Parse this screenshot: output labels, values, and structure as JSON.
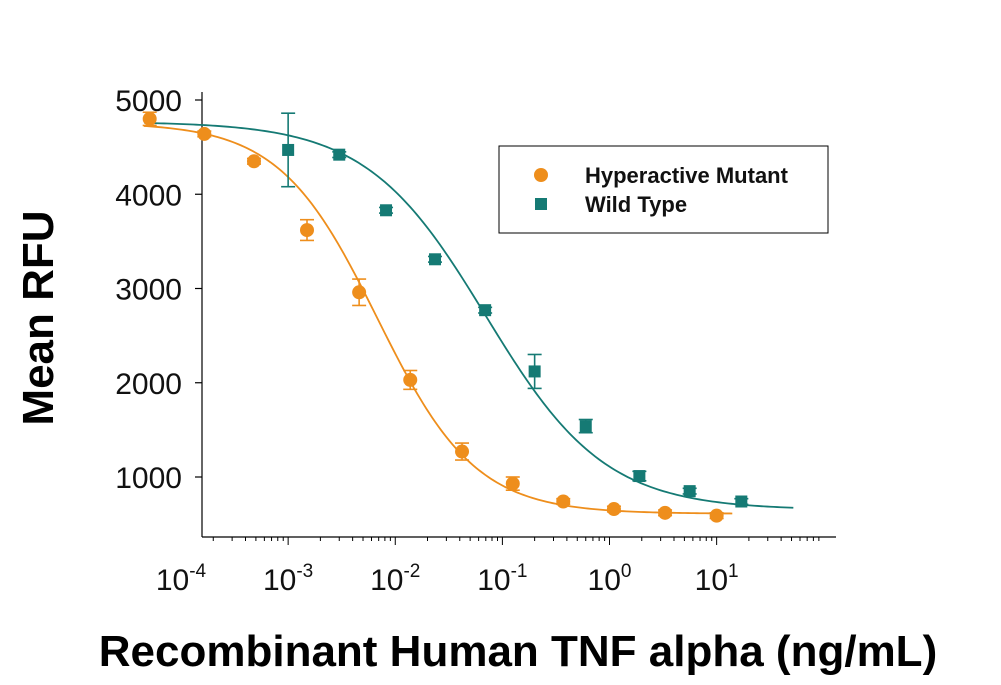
{
  "chart_data": {
    "type": "scatter",
    "title": "",
    "xlabel": "Recombinant Human TNF alpha (ng/mL)",
    "ylabel": "Mean RFU",
    "x_scale": "log",
    "xlim": [
      3e-05,
      60
    ],
    "ylim": [
      600,
      5000
    ],
    "y_ticks": [
      1000,
      2000,
      3000,
      4000,
      5000
    ],
    "x_ticks": [
      {
        "value": 0.0001,
        "base": "10",
        "exp": "-4"
      },
      {
        "value": 0.001,
        "base": "10",
        "exp": "-3"
      },
      {
        "value": 0.01,
        "base": "10",
        "exp": "-2"
      },
      {
        "value": 0.1,
        "base": "10",
        "exp": "-1"
      },
      {
        "value": 1,
        "base": "10",
        "exp": "0"
      },
      {
        "value": 10,
        "base": "10",
        "exp": "1"
      }
    ],
    "grid": false,
    "legend_position": "top-right",
    "series": [
      {
        "name": "Hyperactive Mutant",
        "color": "#ee8e1c",
        "marker": "circle",
        "fit": {
          "top": 4760,
          "bottom": 610,
          "ec50": 0.0068,
          "hill": 0.95
        },
        "points": [
          {
            "x": 5.1e-05,
            "y": 4800,
            "err": 70
          },
          {
            "x": 0.000165,
            "y": 4640,
            "err": 30
          },
          {
            "x": 0.00048,
            "y": 4350,
            "err": 30
          },
          {
            "x": 0.0015,
            "y": 3620,
            "err": 110
          },
          {
            "x": 0.0046,
            "y": 2960,
            "err": 140
          },
          {
            "x": 0.0138,
            "y": 2030,
            "err": 100
          },
          {
            "x": 0.042,
            "y": 1270,
            "err": 90
          },
          {
            "x": 0.125,
            "y": 930,
            "err": 70
          },
          {
            "x": 0.37,
            "y": 740,
            "err": 30
          },
          {
            "x": 1.1,
            "y": 660,
            "err": 30
          },
          {
            "x": 3.3,
            "y": 620,
            "err": 30
          },
          {
            "x": 10,
            "y": 590,
            "err": 30
          }
        ]
      },
      {
        "name": "Wild Type",
        "color": "#157a74",
        "marker": "square",
        "fit": {
          "top": 4770,
          "bottom": 650,
          "ec50": 0.07,
          "hill": 0.78
        },
        "points": [
          {
            "x": 0.001,
            "y": 4470,
            "err": 390
          },
          {
            "x": 0.003,
            "y": 4420,
            "err": 30
          },
          {
            "x": 0.0082,
            "y": 3830,
            "err": 30
          },
          {
            "x": 0.0235,
            "y": 3310,
            "err": 30
          },
          {
            "x": 0.069,
            "y": 2770,
            "err": 30
          },
          {
            "x": 0.2,
            "y": 2120,
            "err": 180
          },
          {
            "x": 0.6,
            "y": 1540,
            "err": 70
          },
          {
            "x": 1.9,
            "y": 1010,
            "err": 50
          },
          {
            "x": 5.6,
            "y": 850,
            "err": 30
          },
          {
            "x": 17,
            "y": 740,
            "err": 30
          }
        ]
      }
    ]
  }
}
